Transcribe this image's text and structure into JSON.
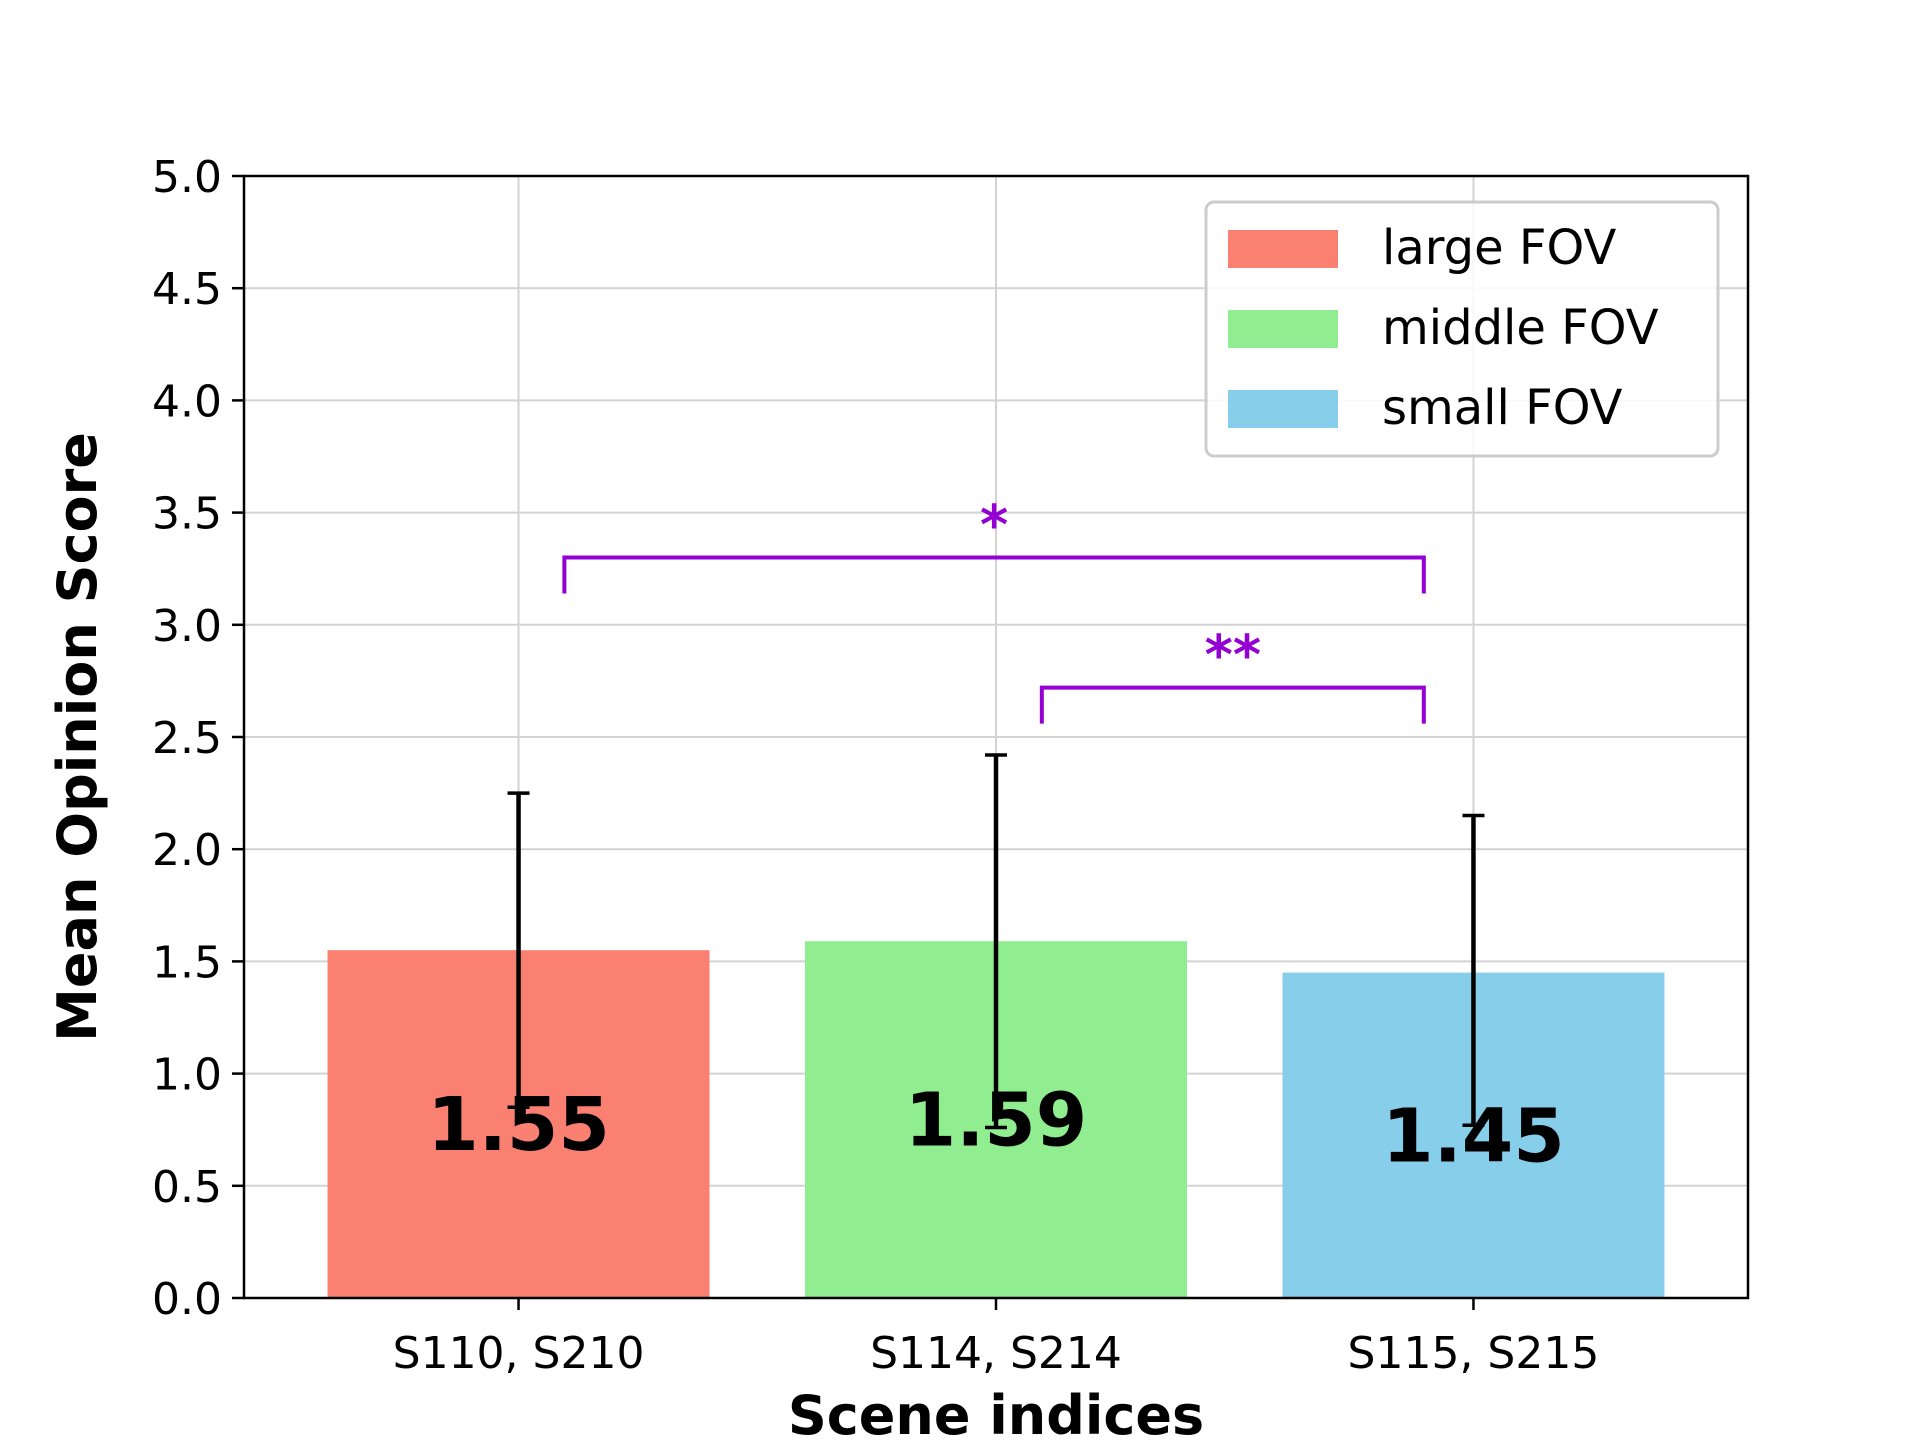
{
  "chart_data": {
    "type": "bar",
    "categories": [
      "S110, S210",
      "S114, S214",
      "S115, S215"
    ],
    "series": [
      {
        "name": "large FOV",
        "category": "S110, S210",
        "value": 1.55,
        "error_low": 0.85,
        "error_high": 2.25,
        "color": "#FA8072"
      },
      {
        "name": "middle FOV",
        "category": "S114, S214",
        "value": 1.59,
        "error_low": 0.76,
        "error_high": 2.42,
        "color": "#90EE90"
      },
      {
        "name": "small FOV",
        "category": "S115, S215",
        "value": 1.45,
        "error_low": 0.77,
        "error_high": 2.15,
        "color": "#87CEEB"
      }
    ],
    "bar_labels": [
      "1.55",
      "1.59",
      "1.45"
    ],
    "xlabel": "Scene indices",
    "ylabel": "Mean Opinion Score",
    "ylim": [
      0,
      5.0
    ],
    "yticks": [
      "0.0",
      "0.5",
      "1.0",
      "1.5",
      "2.0",
      "2.5",
      "3.0",
      "3.5",
      "4.0",
      "4.5",
      "5.0"
    ],
    "grid": true,
    "legend_position": "top-right",
    "significance": [
      {
        "from": 0,
        "to": 2,
        "y": 3.3,
        "label": "*",
        "color": "#9400D3"
      },
      {
        "from": 1,
        "to": 2,
        "y": 2.72,
        "label": "**",
        "color": "#9400D3"
      }
    ]
  }
}
